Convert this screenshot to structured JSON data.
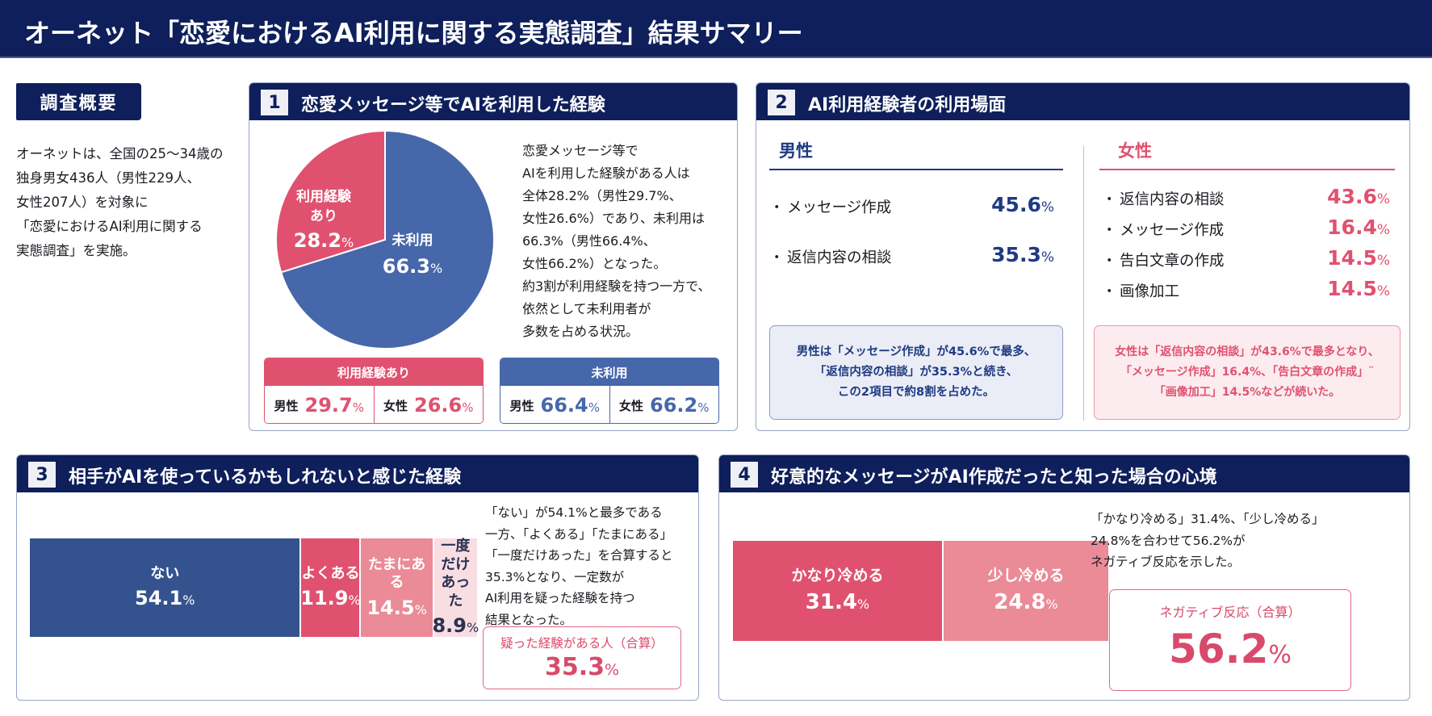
{
  "title": "オーネット「恋愛におけるAI利用に関する実態調査」結果サマリー",
  "overview": {
    "label": "調査概要",
    "text": "オーネットは、全国の25〜34歳の\n独身男女436人（男性229人、\n女性207人）を対象に\n「恋愛におけるAI利用に関する\n実態調査」を実施。"
  },
  "colors": {
    "navy": "#0e1f5b",
    "blue": "#4767ab",
    "pink": "#e05170",
    "pink_mid": "#ea8b97",
    "pink_light": "#f8dde2",
    "dark_blue": "#34528e"
  },
  "section1": {
    "num": "1",
    "title": "恋愛メッセージ等でAIを利用した経験",
    "pie": {
      "used_label_line1": "利用経験",
      "used_label_line2": "あり",
      "used_value": "28.2",
      "unused_label": "未利用",
      "unused_value": "66.3",
      "unit": "%"
    },
    "description": "恋愛メッセージ等で\nAIを利用した経験がある人は\n全体28.2%（男性29.7%、\n女性26.6%）であり、未利用は\n66.3%（男性66.4%、\n女性66.2%）となった。\n約3割が利用経験を持つ一方で、\n依然として未利用者が\n多数を占める状況。",
    "used_box": {
      "header": "利用経験あり",
      "male_label": "男性",
      "male_value": "29.7",
      "female_label": "女性",
      "female_value": "26.6",
      "unit": "%"
    },
    "unused_box": {
      "header": "未利用",
      "male_label": "男性",
      "male_value": "66.4",
      "female_label": "女性",
      "female_value": "66.2",
      "unit": "%"
    }
  },
  "section2": {
    "num": "2",
    "title": "AI利用経験者の利用場面",
    "bullet": "・",
    "unit": "%",
    "male": {
      "label": "男性",
      "items": [
        {
          "name": "メッセージ作成",
          "value": "45.6"
        },
        {
          "name": "返信内容の相談",
          "value": "35.3"
        }
      ],
      "note": "男性は「メッセージ作成」が45.6%で最多、\n「返信内容の相談」が35.3%と続き、\nこの2項目で約8割を占めた。"
    },
    "female": {
      "label": "女性",
      "items": [
        {
          "name": "返信内容の相談",
          "value": "43.6"
        },
        {
          "name": "メッセージ作成",
          "value": "16.4"
        },
        {
          "name": "告白文章の作成",
          "value": "14.5"
        },
        {
          "name": "画像加工",
          "value": "14.5"
        }
      ],
      "note": "女性は「返信内容の相談」が43.6%で最多となり、\n「メッセージ作成」16.4%、「告白文章の作成」¨\n「画像加工」14.5%などが続いた。"
    }
  },
  "section3": {
    "num": "3",
    "title": "相手がAIを使っているかもしれないと感じた経験",
    "unit": "%",
    "segments": [
      {
        "label": "ない",
        "value": "54.1"
      },
      {
        "label": "よくある",
        "value": "11.9"
      },
      {
        "label": "たまにある",
        "value": "14.5"
      },
      {
        "label": "一度だけ\nあった",
        "value": "8.9"
      }
    ],
    "description": "「ない」が54.1%と最多である\n一方、「よくある」「たまにある」\n「一度だけあった」を合算すると\n35.3%となり、一定数が\nAI利用を疑った経験を持つ\n結果となった。",
    "callout_label": "疑った経験がある人（合算）",
    "callout_value": "35.3"
  },
  "section4": {
    "num": "4",
    "title": "好意的なメッセージがAI作成だったと知った場合の心境",
    "unit": "%",
    "segments": [
      {
        "label": "かなり冷める",
        "value": "31.4"
      },
      {
        "label": "少し冷める",
        "value": "24.8"
      }
    ],
    "description": "「かなり冷める」31.4%、「少し冷める」\n24.8%を合わせて56.2%が\nネガティブ反応を示した。",
    "callout_label": "ネガティブ反応（合算）",
    "callout_value": "56.2"
  },
  "chart_data": [
    {
      "type": "pie",
      "title": "恋愛メッセージ等でAIを利用した経験",
      "categories": [
        "利用経験あり",
        "未利用"
      ],
      "values": [
        28.2,
        66.3
      ],
      "unit": "%"
    },
    {
      "type": "bar",
      "orientation": "stacked-horizontal",
      "title": "相手がAIを使っているかもしれないと感じた経験",
      "categories": [
        "ない",
        "よくある",
        "たまにある",
        "一度だけあった"
      ],
      "values": [
        54.1,
        11.9,
        14.5,
        8.9
      ],
      "unit": "%"
    },
    {
      "type": "bar",
      "orientation": "stacked-horizontal",
      "title": "好意的なメッセージがAI作成だったと知った場合の心境",
      "categories": [
        "かなり冷める",
        "少し冷める"
      ],
      "values": [
        31.4,
        24.8
      ],
      "unit": "%"
    }
  ]
}
